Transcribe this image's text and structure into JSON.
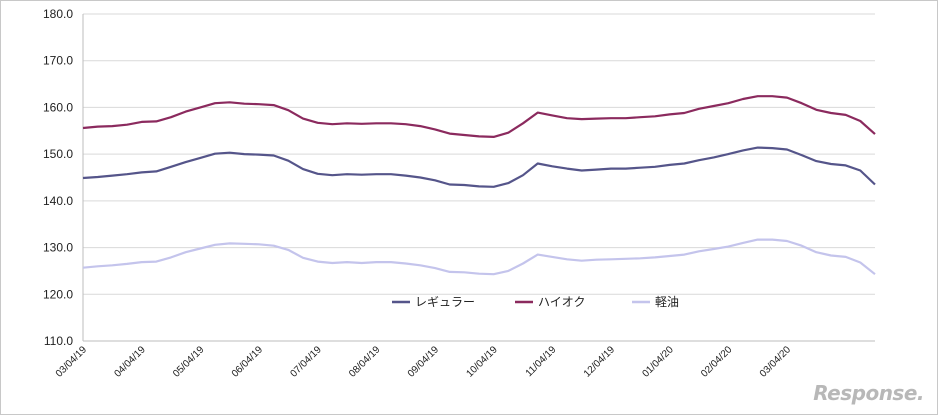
{
  "chart_data": {
    "type": "line",
    "title": "",
    "xlabel": "",
    "ylabel": "",
    "ylim": [
      110,
      180
    ],
    "yticks": [
      "110.0",
      "120.0",
      "130.0",
      "140.0",
      "150.0",
      "160.0",
      "170.0",
      "180.0"
    ],
    "grid": "horizontal",
    "legend_position": "bottom-center",
    "x_tick_labels": [
      "03/04/19",
      "04/04/19",
      "05/04/19",
      "06/04/19",
      "07/04/19",
      "08/04/19",
      "09/04/19",
      "10/04/19",
      "11/04/19",
      "12/04/19",
      "01/04/20",
      "02/04/20",
      "03/04/20"
    ],
    "x": [
      "2019-03-04",
      "2019-03-11",
      "2019-03-18",
      "2019-03-25",
      "2019-04-01",
      "2019-04-08",
      "2019-04-15",
      "2019-04-22",
      "2019-04-29",
      "2019-05-06",
      "2019-05-13",
      "2019-05-20",
      "2019-05-27",
      "2019-06-03",
      "2019-06-10",
      "2019-06-17",
      "2019-06-24",
      "2019-07-01",
      "2019-07-08",
      "2019-07-15",
      "2019-07-22",
      "2019-07-29",
      "2019-08-05",
      "2019-08-12",
      "2019-08-19",
      "2019-08-26",
      "2019-09-02",
      "2019-09-09",
      "2019-09-16",
      "2019-09-23",
      "2019-09-30",
      "2019-10-07",
      "2019-10-14",
      "2019-10-21",
      "2019-10-28",
      "2019-11-04",
      "2019-11-11",
      "2019-11-18",
      "2019-11-25",
      "2019-12-02",
      "2019-12-09",
      "2019-12-16",
      "2019-12-23",
      "2019-12-30",
      "2020-01-06",
      "2020-01-13",
      "2020-01-20",
      "2020-01-27",
      "2020-02-03",
      "2020-02-10",
      "2020-02-17",
      "2020-02-24",
      "2020-03-02",
      "2020-03-09",
      "2020-03-16"
    ],
    "series": [
      {
        "name": "レギュラー",
        "color": "#55558a",
        "values": [
          144.9,
          145.1,
          145.4,
          145.7,
          146.1,
          146.3,
          147.3,
          148.3,
          149.2,
          150.1,
          150.3,
          150.0,
          149.9,
          149.7,
          148.6,
          146.8,
          145.8,
          145.5,
          145.7,
          145.6,
          145.7,
          145.7,
          145.4,
          145.0,
          144.4,
          143.5,
          143.4,
          143.1,
          143.0,
          143.8,
          145.5,
          148.0,
          147.4,
          146.9,
          146.5,
          146.7,
          146.9,
          146.9,
          147.1,
          147.3,
          147.7,
          148.0,
          148.7,
          149.3,
          150.0,
          150.8,
          151.4,
          151.3,
          151.0,
          149.8,
          148.5,
          147.9,
          147.6,
          146.5,
          143.5
        ]
      },
      {
        "name": "ハイオク",
        "color": "#8b2a5e",
        "values": [
          155.6,
          155.9,
          156.0,
          156.3,
          156.9,
          157.0,
          157.9,
          159.1,
          160.0,
          160.9,
          161.1,
          160.8,
          160.7,
          160.5,
          159.4,
          157.6,
          156.7,
          156.4,
          156.6,
          156.5,
          156.6,
          156.6,
          156.4,
          156.0,
          155.3,
          154.4,
          154.1,
          153.8,
          153.7,
          154.6,
          156.6,
          158.9,
          158.3,
          157.7,
          157.5,
          157.6,
          157.7,
          157.7,
          157.9,
          158.1,
          158.5,
          158.8,
          159.7,
          160.3,
          160.9,
          161.8,
          162.4,
          162.4,
          162.1,
          160.9,
          159.5,
          158.8,
          158.4,
          157.1,
          154.3
        ]
      },
      {
        "name": "軽油",
        "color": "#c4c4ec",
        "values": [
          125.7,
          126.0,
          126.2,
          126.5,
          126.9,
          127.0,
          127.9,
          129.0,
          129.8,
          130.6,
          130.9,
          130.8,
          130.7,
          130.4,
          129.5,
          127.8,
          127.0,
          126.7,
          126.9,
          126.7,
          126.9,
          126.9,
          126.6,
          126.2,
          125.6,
          124.8,
          124.7,
          124.4,
          124.3,
          125.0,
          126.6,
          128.5,
          128.0,
          127.5,
          127.2,
          127.4,
          127.5,
          127.6,
          127.7,
          127.9,
          128.2,
          128.5,
          129.2,
          129.7,
          130.2,
          131.0,
          131.7,
          131.7,
          131.4,
          130.4,
          129.0,
          128.3,
          128.0,
          126.8,
          124.3
        ]
      }
    ]
  },
  "watermark": "Response."
}
